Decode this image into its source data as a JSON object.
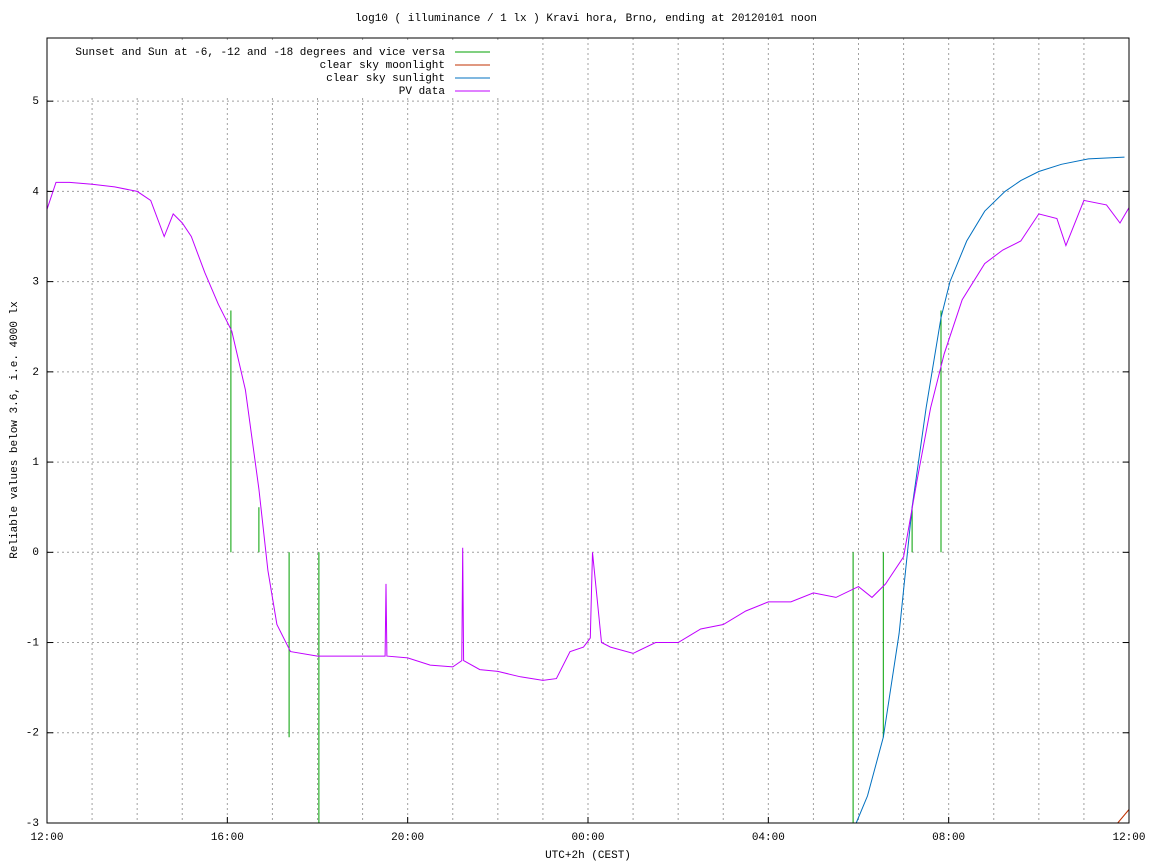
{
  "chart_data": {
    "type": "line",
    "title": "log10 ( illuminance / 1 lx ) Kravi hora, Brno, ending at 20120101 noon",
    "x_label": "UTC+2h (CEST)",
    "y_label": "Reliable values below 3.6, i.e. 4000 lx",
    "xlim": [
      0,
      24
    ],
    "xticks": [
      {
        "value": 0,
        "label": "12:00"
      },
      {
        "value": 4,
        "label": "16:00"
      },
      {
        "value": 8,
        "label": "20:00"
      },
      {
        "value": 12,
        "label": "00:00"
      },
      {
        "value": 16,
        "label": "04:00"
      },
      {
        "value": 20,
        "label": "08:00"
      },
      {
        "value": 24,
        "label": "12:00"
      }
    ],
    "x_minor_grid": [
      1,
      2,
      3,
      5,
      6,
      7,
      9,
      10,
      11,
      13,
      14,
      15,
      17,
      18,
      19,
      21,
      22,
      23
    ],
    "ylim": [
      -3,
      5.7
    ],
    "yticks": [
      -3,
      -2,
      -1,
      0,
      1,
      2,
      3,
      4,
      5
    ],
    "grid": true,
    "legend": "top-left",
    "series": [
      {
        "name": "Sunset and Sun at -6, -12 and -18 degrees and vice versa",
        "color": "#00a000",
        "x": [
          4.08,
          4.08,
          4.08,
          4.7,
          4.7,
          4.7,
          5.37,
          5.37,
          5.37,
          6.03,
          6.03,
          6.03,
          17.88,
          17.88,
          17.88,
          18.55,
          18.55,
          18.55,
          19.19,
          19.19,
          19.19,
          19.83,
          19.83
        ],
        "values": [
          0,
          2.68,
          null,
          0,
          0.5,
          null,
          0,
          -2.05,
          null,
          0,
          -3,
          null,
          0,
          -3,
          null,
          0,
          -2.05,
          null,
          0,
          0.5,
          null,
          0,
          2.68
        ]
      },
      {
        "name": "clear sky moonlight",
        "color": "#c03000",
        "x": [
          23.75,
          24
        ],
        "values": [
          -3,
          -2.85
        ]
      },
      {
        "name": "clear sky sunlight",
        "color": "#0070c0",
        "x": [
          17.95,
          18.2,
          18.55,
          18.9,
          19.19,
          19.5,
          19.83,
          20.03,
          20.4,
          20.8,
          21.25,
          21.6,
          22,
          22.5,
          23.1,
          23.9
        ],
        "values": [
          -3,
          -2.7,
          -2.05,
          -0.9,
          0.5,
          1.6,
          2.6,
          3.0,
          3.45,
          3.78,
          4.0,
          4.12,
          4.22,
          4.3,
          4.36,
          4.38
        ]
      },
      {
        "name": "PV data",
        "color": "#c000ff",
        "x": [
          0,
          0.2,
          0.5,
          1,
          1.5,
          2,
          2.3,
          2.6,
          2.8,
          3.0,
          3.2,
          3.5,
          3.8,
          4.1,
          4.4,
          4.7,
          4.9,
          5.1,
          5.4,
          6,
          7,
          7.5,
          7.52,
          7.54,
          8,
          8.5,
          9,
          9.2,
          9.22,
          9.24,
          9.6,
          10,
          10.5,
          11,
          11.3,
          11.6,
          11.9,
          12.05,
          12.1,
          12.3,
          12.5,
          13,
          13.5,
          14,
          14.5,
          15,
          15.5,
          16,
          16.5,
          17,
          17.5,
          18,
          18.3,
          18.6,
          19,
          19.3,
          19.6,
          19.9,
          20.3,
          20.8,
          21.2,
          21.6,
          22,
          22.4,
          22.6,
          23,
          23.5,
          23.8,
          24
        ],
        "values": [
          3.8,
          4.1,
          4.1,
          4.08,
          4.05,
          4.0,
          3.9,
          3.5,
          3.75,
          3.65,
          3.5,
          3.1,
          2.75,
          2.45,
          1.8,
          0.7,
          -0.2,
          -0.8,
          -1.1,
          -1.15,
          -1.15,
          -1.15,
          -0.35,
          -1.15,
          -1.17,
          -1.25,
          -1.27,
          -1.2,
          0.05,
          -1.2,
          -1.3,
          -1.32,
          -1.38,
          -1.42,
          -1.4,
          -1.1,
          -1.05,
          -0.95,
          0.0,
          -1.0,
          -1.05,
          -1.12,
          -1.0,
          -1.0,
          -0.85,
          -0.8,
          -0.65,
          -0.55,
          -0.55,
          -0.45,
          -0.5,
          -0.38,
          -0.5,
          -0.35,
          -0.05,
          0.8,
          1.6,
          2.2,
          2.8,
          3.2,
          3.35,
          3.45,
          3.75,
          3.7,
          3.4,
          3.9,
          3.85,
          3.65,
          3.82
        ]
      }
    ]
  }
}
